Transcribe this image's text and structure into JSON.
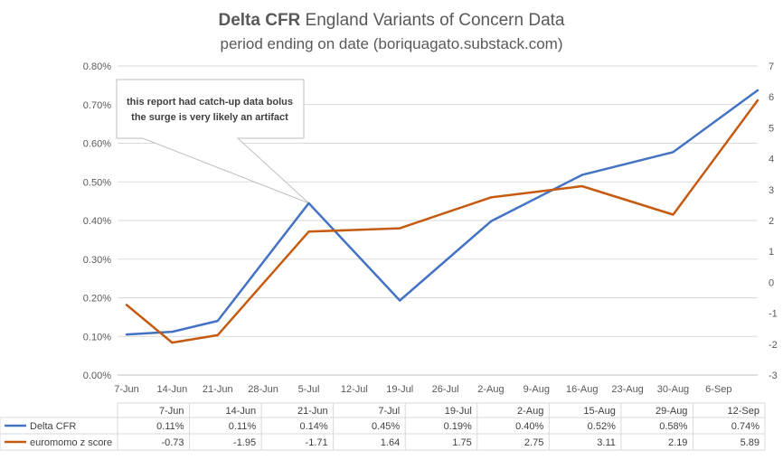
{
  "chart_data": {
    "type": "line",
    "title_bold": "Delta CFR",
    "title_rest": " England Variants of Concern Data",
    "subtitle": "period ending on date      (boriquagato.substack.com)",
    "x_axis_labels": [
      "7-Jun",
      "14-Jun",
      "21-Jun",
      "28-Jun",
      "5-Jul",
      "12-Jul",
      "19-Jul",
      "26-Jul",
      "2-Aug",
      "9-Aug",
      "16-Aug",
      "23-Aug",
      "30-Aug",
      "6-Sep"
    ],
    "y_left_ticks": [
      "0.00%",
      "0.10%",
      "0.20%",
      "0.30%",
      "0.40%",
      "0.50%",
      "0.60%",
      "0.70%",
      "0.80%"
    ],
    "y_left_range": [
      0,
      0.8
    ],
    "y_right_ticks": [
      "-3",
      "-2",
      "-1",
      "0",
      "1",
      "2",
      "3",
      "4",
      "5",
      "6",
      "7"
    ],
    "y_right_range": [
      -3,
      7
    ],
    "annotation_lines": [
      "this report had catch-up  data bolus",
      "the surge is very likely  an artifact"
    ],
    "table_dates": [
      "7-Jun",
      "14-Jun",
      "21-Jun",
      "7-Jul",
      "19-Jul",
      "2-Aug",
      "15-Aug",
      "29-Aug",
      "12-Sep"
    ],
    "series": [
      {
        "name": "Delta CFR",
        "color": "#4472C4",
        "axis": "left",
        "x_days": [
          0,
          7,
          14,
          28,
          42,
          56,
          70,
          84,
          97
        ],
        "values": [
          0.105,
          0.112,
          0.14,
          0.445,
          0.193,
          0.398,
          0.518,
          0.577,
          0.737
        ],
        "table_values": [
          "0.11%",
          "0.11%",
          "0.14%",
          "0.45%",
          "0.19%",
          "0.40%",
          "0.52%",
          "0.58%",
          "0.74%"
        ]
      },
      {
        "name": "euromomo z score",
        "color": "#C55A11",
        "axis": "right",
        "x_days": [
          0,
          7,
          14,
          28,
          42,
          56,
          70,
          84,
          97
        ],
        "values": [
          -0.73,
          -1.95,
          -1.71,
          1.64,
          1.75,
          2.75,
          3.11,
          2.19,
          5.89
        ],
        "table_values": [
          "-0.73",
          "-1.95",
          "-1.71",
          "1.64",
          "1.75",
          "2.75",
          "3.11",
          "2.19",
          "5.89"
        ]
      }
    ]
  }
}
